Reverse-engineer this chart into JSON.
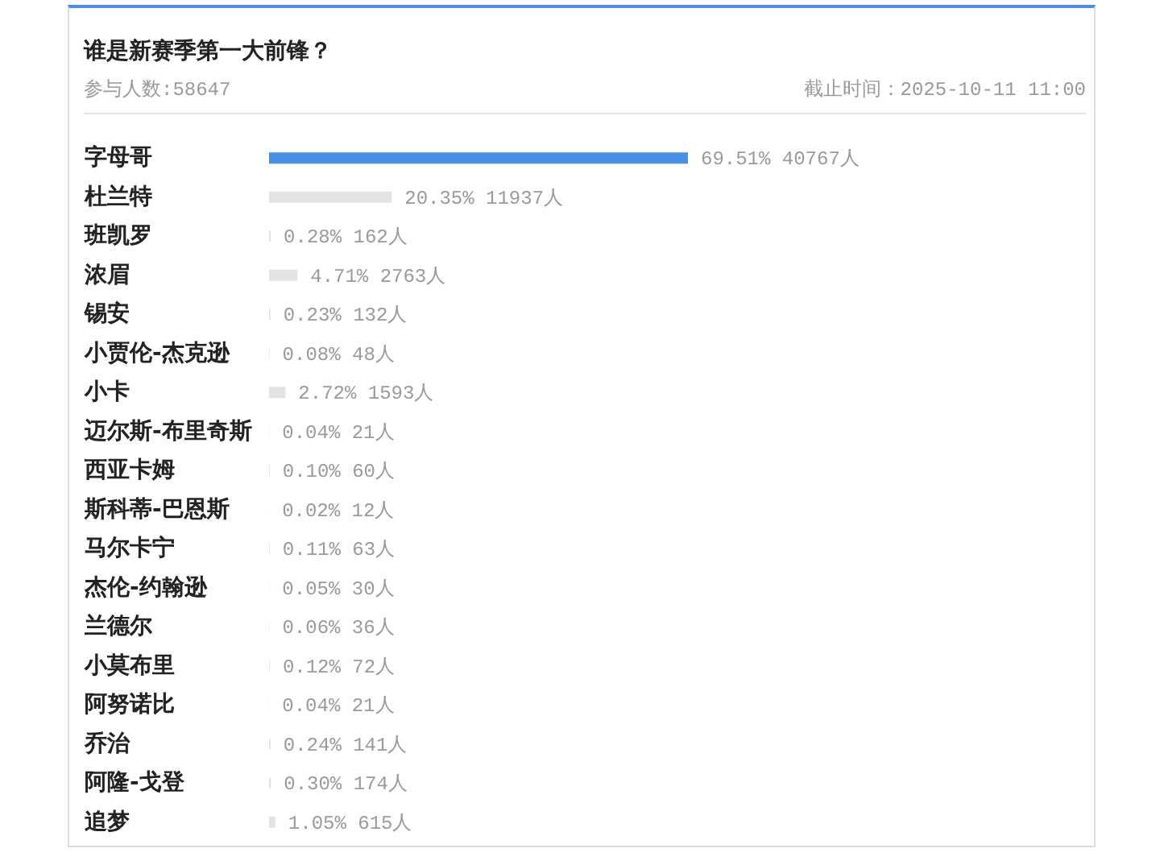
{
  "chart_data": {
    "type": "bar",
    "orientation": "horizontal",
    "title": "谁是新赛季第一大前锋？",
    "subtitle": "参与人数:58647",
    "annotations": [
      "截止时间：2025-10-11 11:00"
    ],
    "categories": [
      "字母哥",
      "杜兰特",
      "班凯罗",
      "浓眉",
      "锡安",
      "小贾伦-杰克逊",
      "小卡",
      "迈尔斯-布里奇斯",
      "西亚卡姆",
      "斯科蒂-巴恩斯",
      "马尔卡宁",
      "杰伦-约翰逊",
      "兰德尔",
      "小莫布里",
      "阿努诺比",
      "乔治",
      "阿隆-戈登",
      "追梦"
    ],
    "values": [
      69.51,
      20.35,
      0.28,
      4.71,
      0.23,
      0.08,
      2.72,
      0.04,
      0.1,
      0.02,
      0.11,
      0.05,
      0.06,
      0.12,
      0.04,
      0.24,
      0.3,
      1.05
    ],
    "value_labels": [
      "69.51% 40767人",
      "20.35% 11937人",
      "0.28% 162人",
      "4.71% 2763人",
      "0.23% 132人",
      "0.08% 48人",
      "2.72% 1593人",
      "0.04% 21人",
      "0.10% 60人",
      "0.02% 12人",
      "0.11% 63人",
      "0.05% 30人",
      "0.06% 36人",
      "0.12% 72人",
      "0.04% 21人",
      "0.24% 141人",
      "0.30% 174人",
      "1.05% 615人"
    ],
    "colors": [
      "#4a90e2",
      "#e3e3e3",
      "#e3e3e3",
      "#e3e3e3",
      "#e3e3e3",
      "#e3e3e3",
      "#e3e3e3",
      "#e3e3e3",
      "#e3e3e3",
      "#e3e3e3",
      "#e3e3e3",
      "#e3e3e3",
      "#e3e3e3",
      "#e3e3e3",
      "#e3e3e3",
      "#e3e3e3",
      "#e3e3e3",
      "#e3e3e3"
    ],
    "tick_labels": "y"
  }
}
